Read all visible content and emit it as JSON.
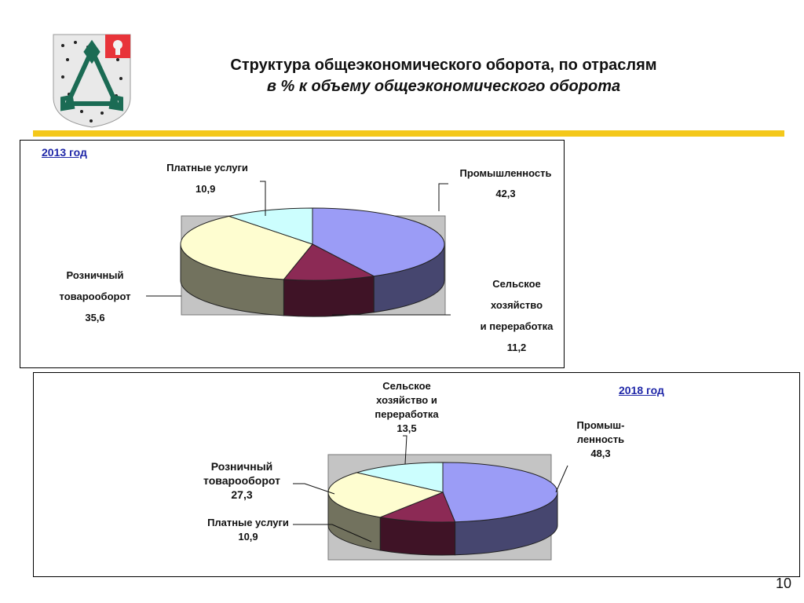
{
  "header": {
    "title": "Структура общеэкономического оборота, по отраслям",
    "subtitle": "в % к объему общеэкономического оборота"
  },
  "page_number": "10",
  "colors": {
    "accent_bar": "#f4c81a",
    "year_label": "#1f27a8",
    "chart_backdrop": "#c4c4c4"
  },
  "icons": {
    "coat_of_arms": "coat-of-arms-icon",
    "region_emblem": "moscow-region-emblem-icon"
  },
  "chart_data": [
    {
      "type": "pie",
      "year_label": "2013 год",
      "slices": [
        {
          "label": "Промышленность",
          "value": 42.3,
          "value_text": "42,3",
          "color": "#9b9cf6"
        },
        {
          "label": "Сельское хозяйство и переработка",
          "label_lines": [
            "Сельское",
            "хозяйство",
            "и переработка"
          ],
          "value": 11.2,
          "value_text": "11,2",
          "color": "#8c2a55"
        },
        {
          "label": "Розничный товарооборот",
          "label_lines": [
            "Розничный",
            "товарооборот"
          ],
          "value": 35.6,
          "value_text": "35,6",
          "color": "#fefdd0"
        },
        {
          "label": "Платные услуги",
          "value": 10.9,
          "value_text": "10,9",
          "color": "#ccfefe"
        }
      ]
    },
    {
      "type": "pie",
      "year_label": "2018 год",
      "slices": [
        {
          "label": "Промышленность",
          "label_lines": [
            "Промыш-",
            "ленность"
          ],
          "value": 48.3,
          "value_text": "48,3",
          "color": "#9b9cf6"
        },
        {
          "label": "Платные услуги",
          "value": 10.9,
          "value_text": "10,9",
          "color": "#8c2a55"
        },
        {
          "label": "Розничный товарооборот",
          "label_lines": [
            "Розничный",
            "товарооборот"
          ],
          "value": 27.3,
          "value_text": "27,3",
          "color": "#fefdd0"
        },
        {
          "label": "Сельское хозяйство и переработка",
          "label_lines": [
            "Сельское",
            "хозяйство и",
            "переработка"
          ],
          "value": 13.5,
          "value_text": "13,5",
          "color": "#ccfefe"
        }
      ]
    }
  ]
}
